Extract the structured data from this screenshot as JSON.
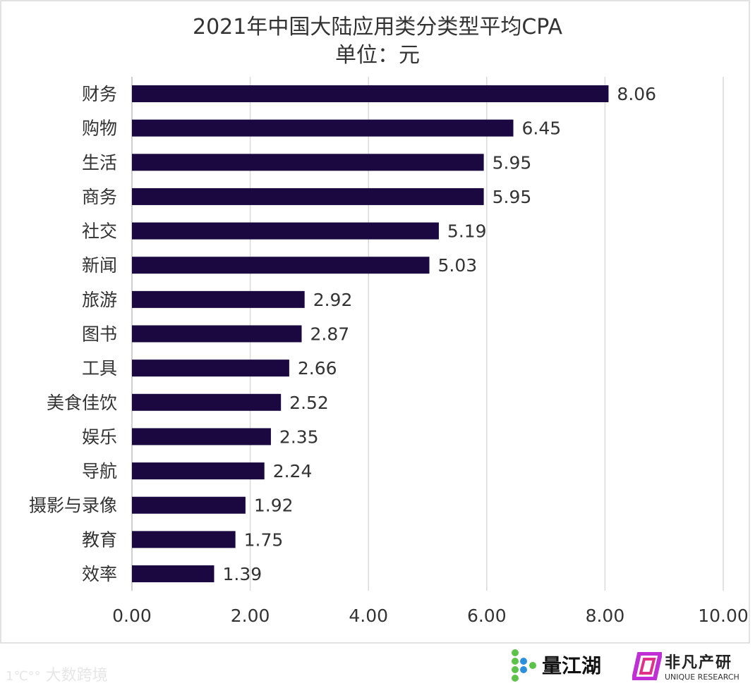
{
  "chart_data": {
    "type": "bar",
    "orientation": "horizontal",
    "title": "2021年中国大陆应用类分类型平均CPA",
    "subtitle": "单位：元",
    "categories": [
      "财务",
      "购物",
      "生活",
      "商务",
      "社交",
      "新闻",
      "旅游",
      "图书",
      "工具",
      "美食佳饮",
      "娱乐",
      "导航",
      "摄影与录像",
      "教育",
      "效率"
    ],
    "values": [
      8.06,
      6.45,
      5.95,
      5.95,
      5.19,
      5.03,
      2.92,
      2.87,
      2.66,
      2.52,
      2.35,
      2.24,
      1.92,
      1.75,
      1.39
    ],
    "data_labels": [
      "8.06",
      "6.45",
      "5.95",
      "5.95",
      "5.19",
      "5.03",
      "2.92",
      "2.87",
      "2.66",
      "2.52",
      "2.35",
      "2.24",
      "1.92",
      "1.75",
      "1.39"
    ],
    "xlim": [
      0,
      10
    ],
    "x_ticks": [
      "0.00",
      "2.00",
      "4.00",
      "6.00",
      "8.00",
      "10.00"
    ],
    "grid": true,
    "bar_color": "#1b0840"
  },
  "watermarks": {
    "left": "大数跨境",
    "brand1": "量江湖",
    "brand2": "非凡产研",
    "brand2_sub": "UNIQUE RESEARCH"
  }
}
